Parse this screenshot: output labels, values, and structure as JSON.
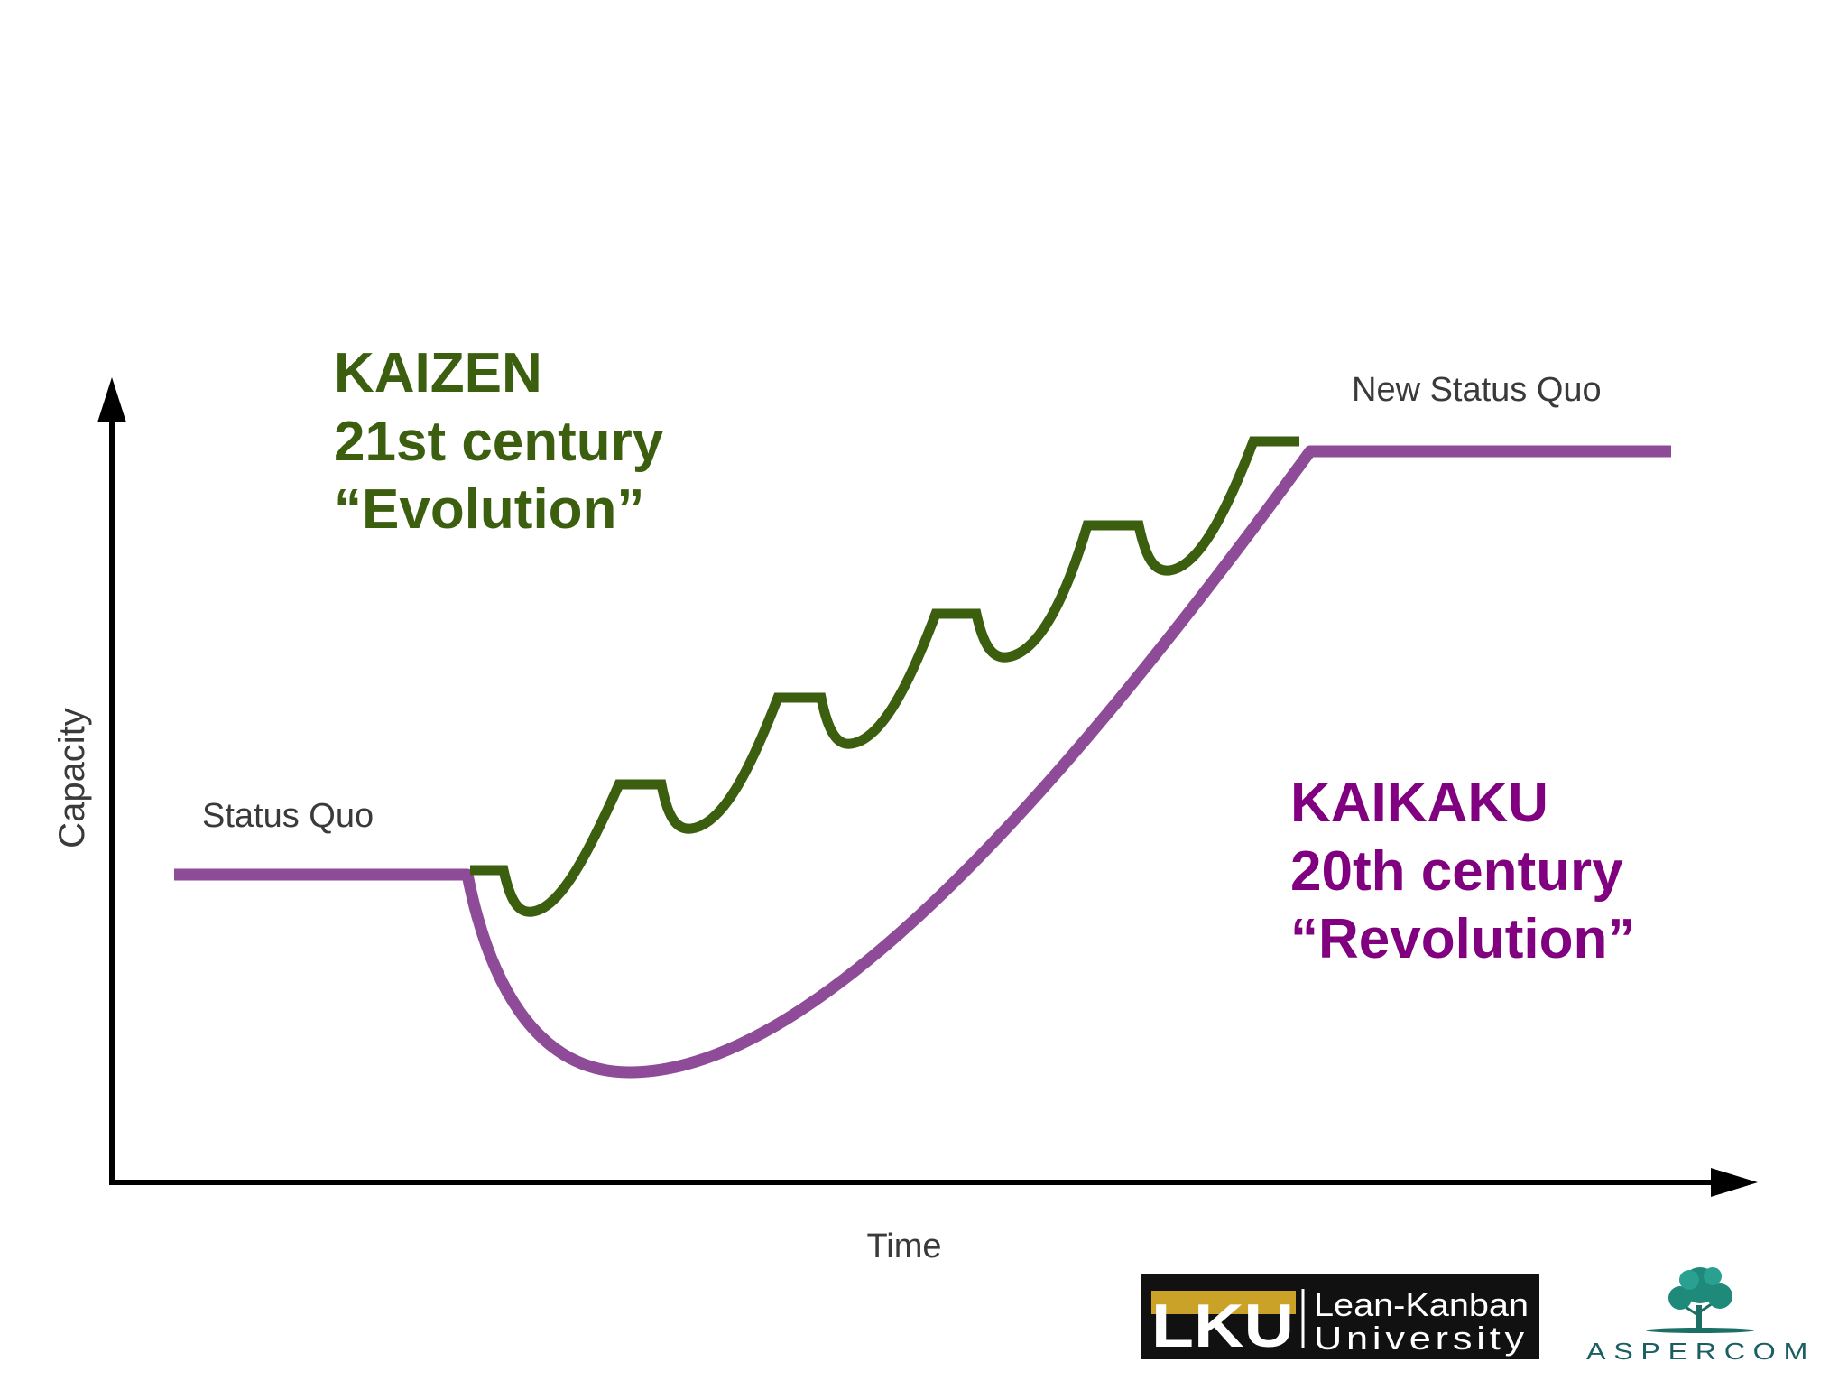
{
  "chart_data": {
    "type": "line",
    "title": "",
    "xlabel": "Time",
    "ylabel": "Capacity",
    "grid": false,
    "series": [
      {
        "name": "KAIKAKU 20th century “Revolution”",
        "color": "#8e4b97"
      },
      {
        "name": "KAIZEN 21st century “Evolution”",
        "color": "#3b5e0f"
      }
    ],
    "annotations": {
      "status_quo": "Status Quo",
      "new_status_quo": "New Status Quo"
    }
  },
  "kaizen": {
    "line1": "KAIZEN",
    "line2": "21st century",
    "line3": "“Evolution”",
    "color": "#3b5e0f"
  },
  "kaikaku": {
    "line1": "KAIKAKU",
    "line2": "20th century",
    "line3": "“Revolution”",
    "color": "#800080"
  },
  "logos": {
    "lku": {
      "mark": "LKU",
      "line1": "Lean-Kanban",
      "line2": "University"
    },
    "aspercom": {
      "word": "ASPERCOM"
    }
  }
}
